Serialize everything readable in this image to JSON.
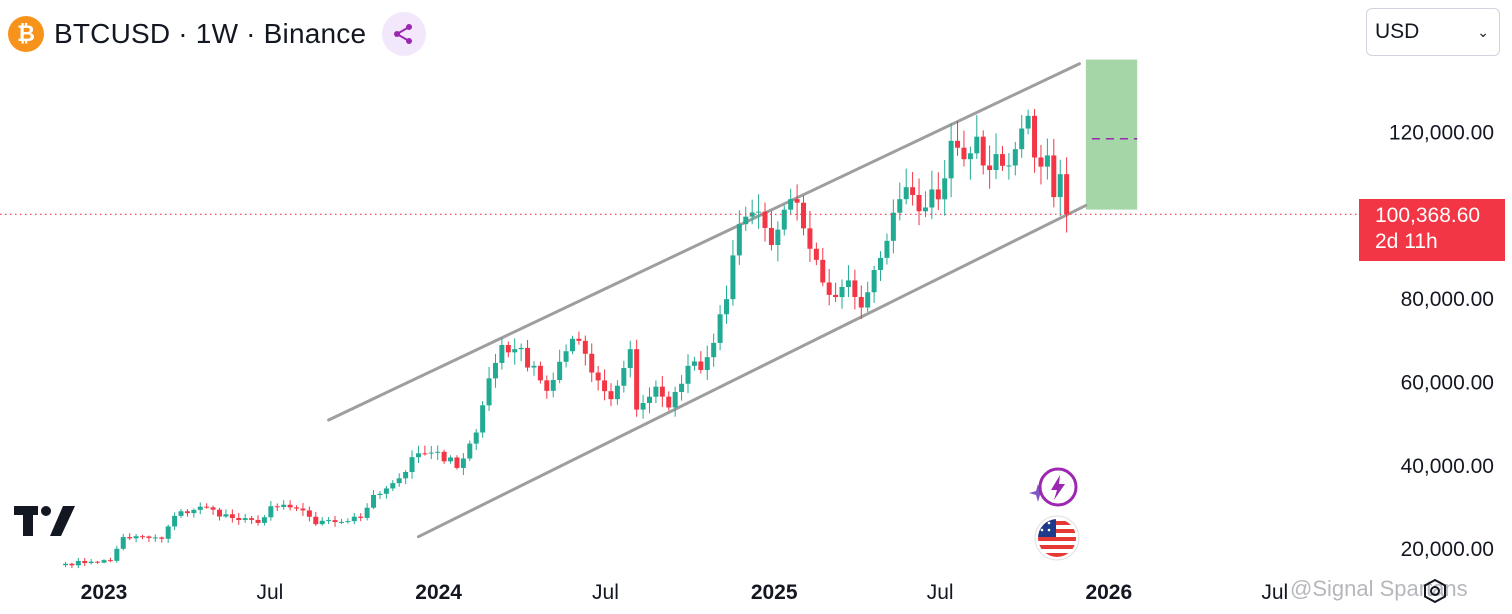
{
  "header": {
    "coin_icon": "bitcoin-icon",
    "symbol_title": "BTCUSD · 1W · Binance",
    "share_icon": "share-icon"
  },
  "currency": {
    "selected": "USD"
  },
  "price_tag": {
    "price": "100,368.60",
    "countdown": "2d 11h"
  },
  "watermark": "@Signal Spartans",
  "colors": {
    "up": "#22ab94",
    "down": "#f23645",
    "channel": "#9e9e9e",
    "target": "#a5d6a7",
    "dashed": "#9c27b0",
    "price_line": "#f23645"
  },
  "chart_data": {
    "type": "candlestick",
    "title": "",
    "y_ticks": [
      {
        "value": 20000,
        "label": "20,000.00"
      },
      {
        "value": 40000,
        "label": "40,000.00"
      },
      {
        "value": 60000,
        "label": "60,000.00"
      },
      {
        "value": 80000,
        "label": "80,000.00"
      },
      {
        "value": 120000,
        "label": "120,000.00"
      }
    ],
    "x_ticks": [
      {
        "date": "2023-01-01",
        "label": "2023"
      },
      {
        "date": "2023-07-01",
        "label": "Jul"
      },
      {
        "date": "2024-01-01",
        "label": "2024"
      },
      {
        "date": "2024-07-01",
        "label": "Jul"
      },
      {
        "date": "2025-01-01",
        "label": "2025"
      },
      {
        "date": "2025-07-01",
        "label": "Jul"
      },
      {
        "date": "2026-01-01",
        "label": "2026"
      },
      {
        "date": "2026-07-01",
        "label": "Jul"
      }
    ],
    "current_price": 100368.6,
    "y_range": [
      15000,
      140000
    ],
    "anchor_closes": [
      [
        "2022-11-20",
        16500
      ],
      [
        "2022-12-18",
        17000
      ],
      [
        "2023-01-08",
        17200
      ],
      [
        "2023-01-22",
        22900
      ],
      [
        "2023-03-05",
        22500
      ],
      [
        "2023-03-19",
        28000
      ],
      [
        "2023-04-16",
        30200
      ],
      [
        "2023-05-28",
        27000
      ],
      [
        "2023-06-18",
        26300
      ],
      [
        "2023-07-02",
        30300
      ],
      [
        "2023-08-06",
        29300
      ],
      [
        "2023-08-20",
        26000
      ],
      [
        "2023-09-10",
        26500
      ],
      [
        "2023-10-08",
        27500
      ],
      [
        "2023-10-22",
        33000
      ],
      [
        "2023-11-19",
        37000
      ],
      [
        "2023-12-10",
        43000
      ],
      [
        "2024-01-14",
        42000
      ],
      [
        "2024-01-21",
        39500
      ],
      [
        "2024-02-11",
        48000
      ],
      [
        "2024-02-25",
        61000
      ],
      [
        "2024-03-10",
        69000
      ],
      [
        "2024-03-24",
        68000
      ],
      [
        "2024-04-14",
        64000
      ],
      [
        "2024-04-28",
        58000
      ],
      [
        "2024-05-19",
        67500
      ],
      [
        "2024-06-02",
        70000
      ],
      [
        "2024-06-23",
        60500
      ],
      [
        "2024-07-07",
        56000
      ],
      [
        "2024-07-28",
        68000
      ],
      [
        "2024-08-04",
        53500
      ],
      [
        "2024-08-25",
        59000
      ],
      [
        "2024-09-08",
        54000
      ],
      [
        "2024-09-29",
        64000
      ],
      [
        "2024-10-13",
        63000
      ],
      [
        "2024-10-27",
        69500
      ],
      [
        "2024-11-10",
        80000
      ],
      [
        "2024-11-17",
        90500
      ],
      [
        "2024-11-24",
        98000
      ],
      [
        "2024-12-15",
        101000
      ],
      [
        "2024-12-29",
        93000
      ],
      [
        "2025-01-19",
        104000
      ],
      [
        "2025-02-02",
        97000
      ],
      [
        "2025-02-23",
        84000
      ],
      [
        "2025-03-09",
        80500
      ],
      [
        "2025-03-23",
        84500
      ],
      [
        "2025-04-06",
        78000
      ],
      [
        "2025-04-20",
        87000
      ],
      [
        "2025-05-04",
        94000
      ],
      [
        "2025-05-18",
        104000
      ],
      [
        "2025-06-01",
        105000
      ],
      [
        "2025-06-15",
        102000
      ],
      [
        "2025-07-06",
        109000
      ],
      [
        "2025-07-13",
        118000
      ],
      [
        "2025-08-03",
        115000
      ],
      [
        "2025-08-10",
        119000
      ],
      [
        "2025-08-24",
        111000
      ],
      [
        "2025-09-07",
        112000
      ],
      [
        "2025-09-21",
        116000
      ],
      [
        "2025-10-05",
        124000
      ],
      [
        "2025-10-12",
        114000
      ],
      [
        "2025-10-26",
        114500
      ],
      [
        "2025-11-02",
        104500
      ],
      [
        "2025-11-09",
        110000
      ],
      [
        "2025-11-16",
        100368.6
      ]
    ],
    "channel_upper": {
      "start": [
        "2023-09-03",
        51000
      ],
      "end": [
        "2025-11-30",
        136500
      ]
    },
    "channel_lower": {
      "start": [
        "2023-12-10",
        23000
      ],
      "end": [
        "2025-12-07",
        102500
      ]
    },
    "target_box": {
      "from": "2025-12-07",
      "to": "2026-02-01",
      "low": 101500,
      "high": 137500,
      "marker": 118500
    },
    "volume_shown": false,
    "grid": false
  }
}
